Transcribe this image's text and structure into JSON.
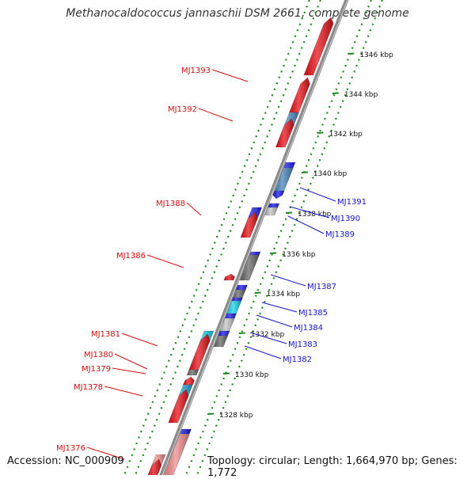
{
  "title": "Methanocaldococcus jannaschii DSM 2661, complete genome",
  "accession": "Accession: NC_000909",
  "summary": "Topology: circular; Length: 1,664,970 bp; Genes: 1,772",
  "colors": {
    "forward": "#e8141b",
    "reverse": "#1a1ae6",
    "pseudo_forward": "#f08c8c",
    "steel": "#4a86bd",
    "cyan": "#19d2ee",
    "cyan_dark": "#2aa8d0",
    "grey_dark": "#6a6a6a",
    "grey_light": "#c4c4c4",
    "backbone": "#8a8a8a",
    "grid": "#1f8a1f",
    "label_forward": "#d41010",
    "label_reverse": "#1414c8"
  },
  "scale_ticks": [
    {
      "label": "1346 kbp"
    },
    {
      "label": "1344 kbp"
    },
    {
      "label": "1342 kbp"
    },
    {
      "label": "1340 kbp"
    },
    {
      "label": "1338 kbp"
    },
    {
      "label": "1336 kbp"
    },
    {
      "label": "1334 kbp"
    },
    {
      "label": "1332 kbp"
    },
    {
      "label": "1330 kbp"
    },
    {
      "label": "1328 kbp"
    }
  ],
  "gene_labels_forward": [
    {
      "name": "MJ1393"
    },
    {
      "name": "MJ1392"
    },
    {
      "name": "MJ1388"
    },
    {
      "name": "MJ1386"
    },
    {
      "name": "MJ1381"
    },
    {
      "name": "MJ1380"
    },
    {
      "name": "MJ1379"
    },
    {
      "name": "MJ1378"
    },
    {
      "name": "MJ1376"
    }
  ],
  "gene_labels_reverse": [
    {
      "name": "MJ1391"
    },
    {
      "name": "MJ1390"
    },
    {
      "name": "MJ1389"
    },
    {
      "name": "MJ1387"
    },
    {
      "name": "MJ1385"
    },
    {
      "name": "MJ1384"
    },
    {
      "name": "MJ1383"
    },
    {
      "name": "MJ1382"
    }
  ]
}
